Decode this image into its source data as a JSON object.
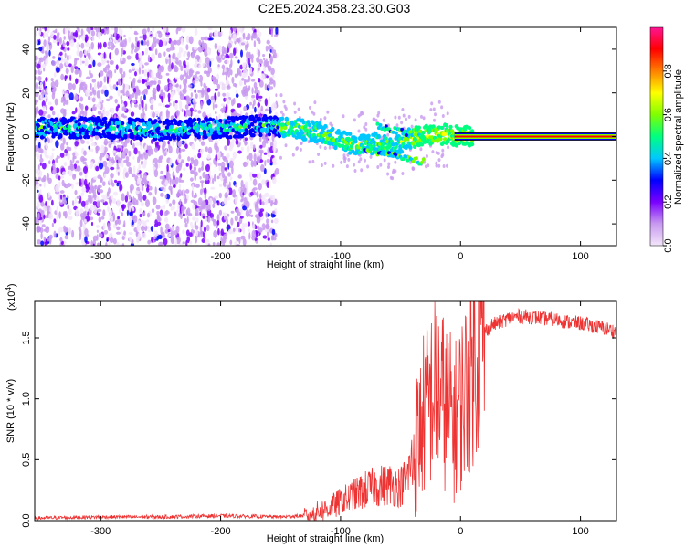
{
  "title": "C2E5.2024.358.23.30.G03",
  "chart_data": [
    {
      "type": "heatmap",
      "xlabel": "Height of straight line (km)",
      "ylabel": "Frequency (Hz)",
      "xlim": [
        -355,
        130
      ],
      "ylim": [
        -50,
        50
      ],
      "xticks": [
        -300,
        -200,
        -100,
        0,
        100
      ],
      "xtick_labels": [
        "-300",
        "-200",
        "-100",
        "0",
        "100"
      ],
      "yticks": [
        -40,
        -20,
        0,
        20,
        40
      ],
      "ytick_labels": [
        "-40",
        "-20",
        "0",
        "20",
        "40"
      ],
      "grid": false,
      "ridge_trace": {
        "x": [
          -355,
          -300,
          -250,
          -200,
          -160,
          -140,
          -120,
          -100,
          -85,
          -70,
          -55,
          -45,
          -35,
          -30,
          -20,
          -10,
          0,
          10,
          130
        ],
        "y": [
          4,
          4,
          3,
          4,
          5,
          4,
          2,
          -2,
          -4,
          -3,
          -5,
          -1,
          0,
          1,
          1,
          1,
          0,
          0,
          0
        ]
      },
      "colorbar": {
        "label": "Normalized spectral amplitude",
        "range": [
          0,
          1
        ],
        "ticks": [
          0.0,
          0.2,
          0.4,
          0.6,
          0.8
        ],
        "tick_labels": [
          "0.0",
          "0.2",
          "0.4",
          "0.6",
          "0.8"
        ],
        "colormap": [
          "#f3e6fa",
          "#c89af0",
          "#7a00ff",
          "#0000ff",
          "#00c8ff",
          "#00ff80",
          "#80ff00",
          "#ffff00",
          "#ff8000",
          "#ff0000",
          "#ff1493"
        ]
      }
    },
    {
      "type": "line",
      "xlabel": "Height of straight line (km)",
      "ylabel": "SNR (10 * v/v)",
      "y_scale_note": "(x10",
      "y_scale_exponent": "4",
      "xlim": [
        -355,
        130
      ],
      "ylim": [
        0,
        1.8
      ],
      "xticks": [
        -300,
        -200,
        -100,
        0,
        100
      ],
      "xtick_labels": [
        "-300",
        "-200",
        "-100",
        "0",
        "100"
      ],
      "yticks": [
        0.0,
        0.5,
        1.0,
        1.5
      ],
      "ytick_labels": [
        "0.0",
        "0.5",
        "1.0",
        "1.5"
      ],
      "grid": false,
      "series_color": "#ee3333",
      "series": [
        {
          "x": [
            -355,
            -300,
            -250,
            -200,
            -150,
            -130,
            -110,
            -100,
            -90,
            -80,
            -70,
            -60,
            -50,
            -45,
            -40,
            -35,
            -30,
            -25,
            -20,
            -15,
            -10,
            -5,
            0,
            5,
            10,
            15,
            20,
            25,
            30,
            40,
            50,
            60,
            70,
            80,
            90,
            100,
            110,
            120,
            130
          ],
          "values": [
            0.02,
            0.03,
            0.03,
            0.04,
            0.03,
            0.04,
            0.1,
            0.15,
            0.2,
            0.25,
            0.28,
            0.3,
            0.28,
            0.35,
            0.5,
            0.7,
            0.9,
            1.0,
            1.1,
            1.0,
            0.9,
            0.8,
            0.95,
            1.1,
            1.3,
            1.45,
            1.55,
            1.6,
            1.62,
            1.66,
            1.68,
            1.67,
            1.66,
            1.65,
            1.63,
            1.62,
            1.6,
            1.58,
            1.55
          ]
        }
      ]
    }
  ]
}
